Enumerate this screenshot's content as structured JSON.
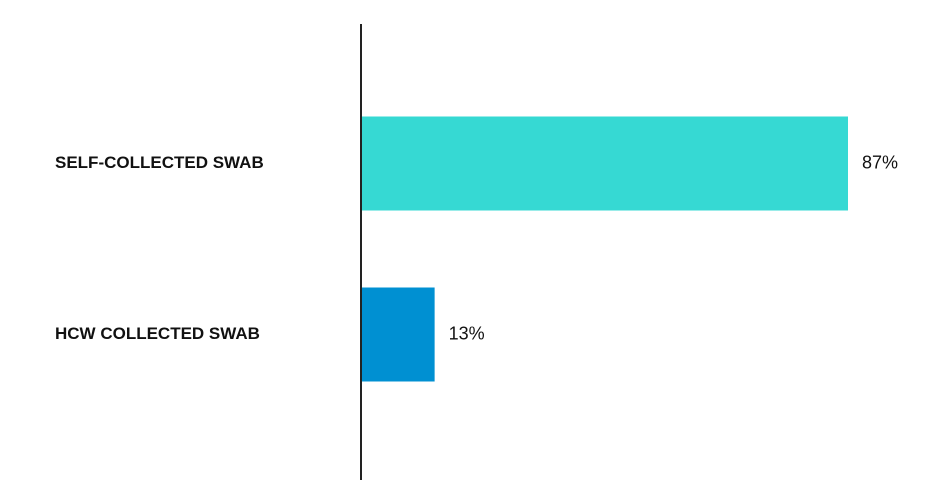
{
  "chart_data": {
    "type": "hbar",
    "categories": [
      "SELF-COLLECTED SWAB",
      "HCW COLLECTED SWAB"
    ],
    "values": [
      87,
      13
    ],
    "value_labels": [
      "87%",
      "13%"
    ],
    "colors": [
      "#36d9d3",
      "#0090d2"
    ]
  }
}
